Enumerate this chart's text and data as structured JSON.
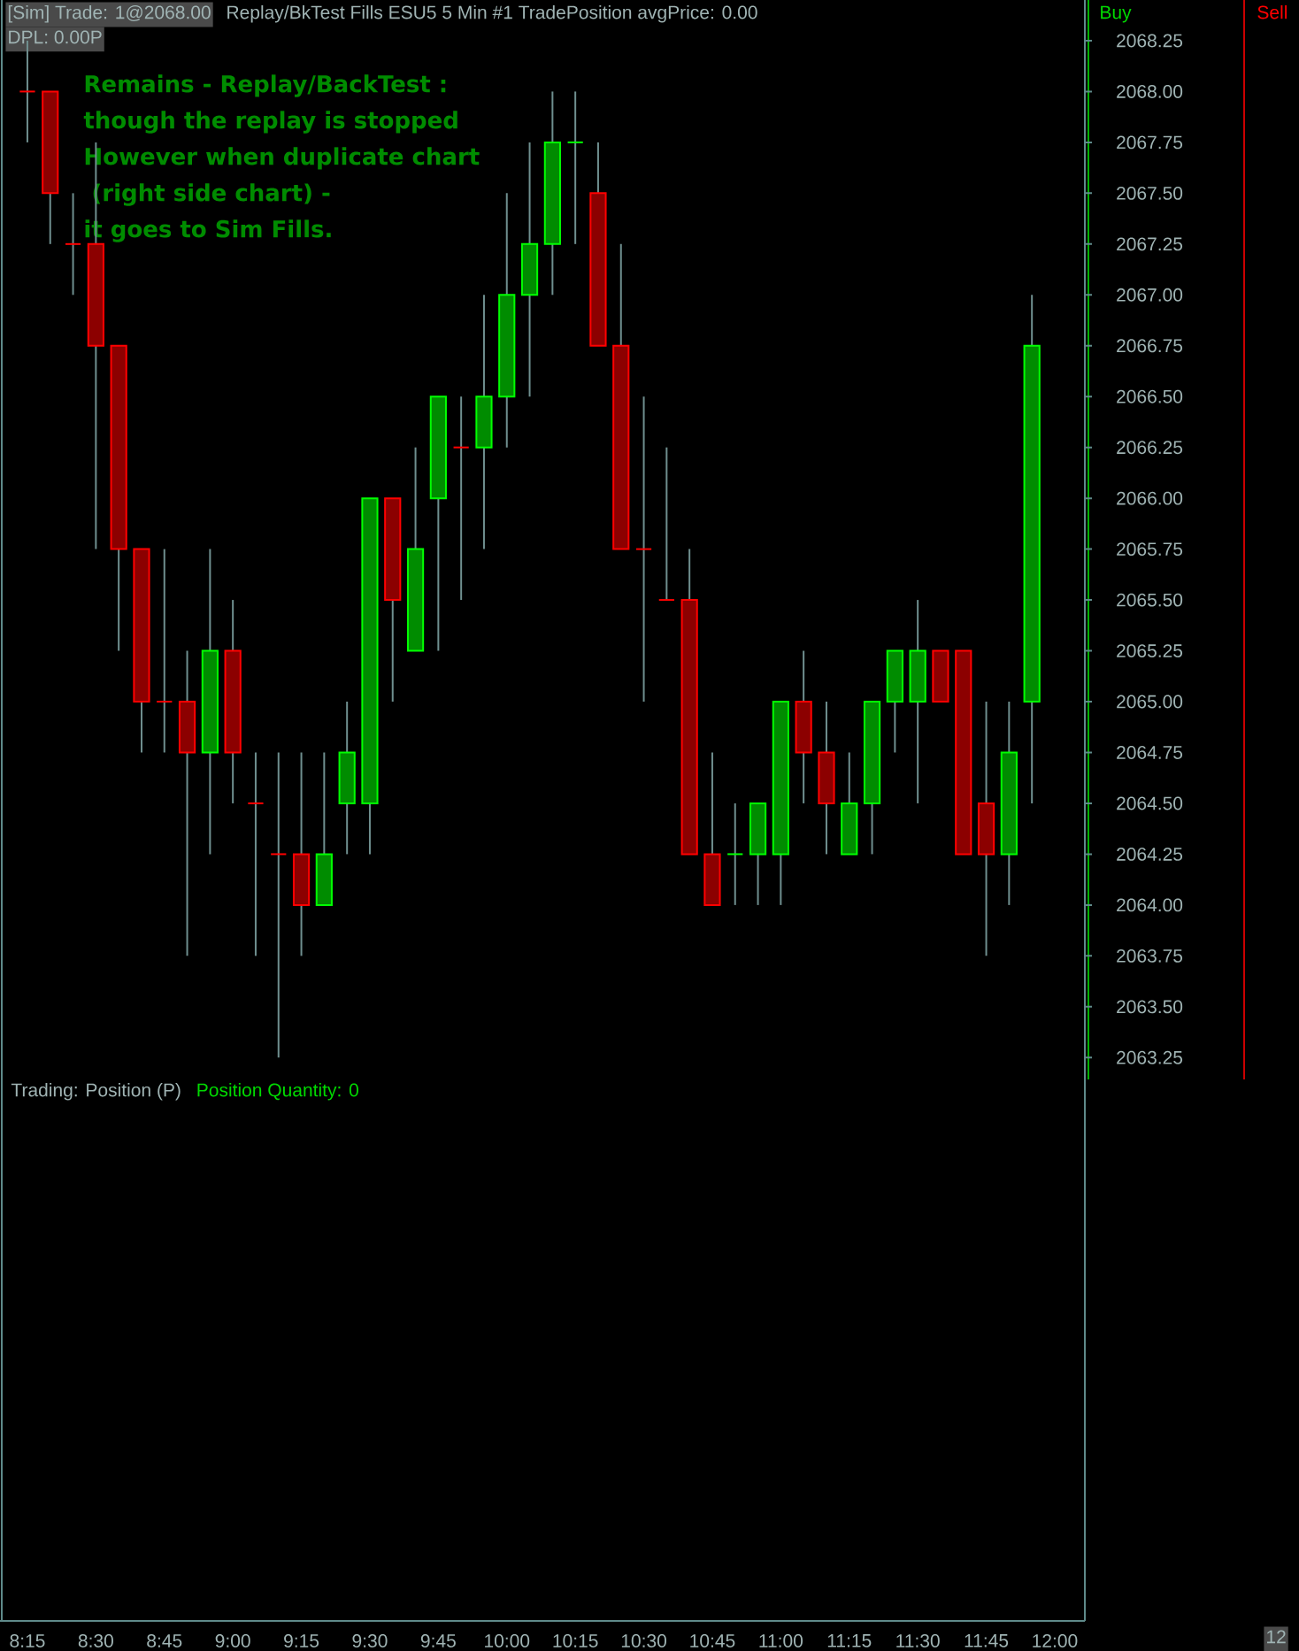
{
  "chart_data": {
    "type": "candlestick",
    "x": [
      8.25,
      8.3333,
      8.4167,
      8.5,
      8.5833,
      8.6667,
      8.75,
      8.8333,
      8.9167,
      9.0,
      9.0833,
      9.1667,
      9.25,
      9.3333,
      9.4167,
      9.5,
      9.5833,
      9.6667,
      9.75,
      9.8333,
      9.9167,
      10.0,
      10.0833,
      10.1667,
      10.25,
      10.3333,
      10.4167,
      10.5,
      10.5833,
      10.6667,
      10.75,
      10.8333,
      10.9167,
      11.0,
      11.0833,
      11.1667,
      11.25,
      11.3333,
      11.4167,
      11.5,
      11.5833,
      11.6667,
      11.75,
      11.8333,
      11.9167
    ],
    "ohlc": [
      [
        2068.0,
        2068.25,
        2067.75,
        2068.0
      ],
      [
        2068.0,
        2068.0,
        2067.25,
        2067.5
      ],
      [
        2067.25,
        2067.5,
        2067.0,
        2067.25
      ],
      [
        2067.25,
        2067.75,
        2065.75,
        2066.75
      ],
      [
        2066.75,
        2066.75,
        2065.25,
        2065.75
      ],
      [
        2065.75,
        2065.75,
        2064.75,
        2065.0
      ],
      [
        2065.0,
        2065.75,
        2064.75,
        2065.0
      ],
      [
        2065.0,
        2065.25,
        2063.75,
        2064.75
      ],
      [
        2064.75,
        2065.75,
        2064.25,
        2065.25
      ],
      [
        2065.25,
        2065.5,
        2064.5,
        2064.75
      ],
      [
        2064.5,
        2064.75,
        2063.75,
        2064.5
      ],
      [
        2064.25,
        2064.75,
        2063.25,
        2064.25
      ],
      [
        2064.25,
        2064.75,
        2063.75,
        2064.0
      ],
      [
        2064.0,
        2064.75,
        2064.0,
        2064.25
      ],
      [
        2064.5,
        2065.0,
        2064.25,
        2064.75
      ],
      [
        2064.5,
        2066.0,
        2064.25,
        2066.0
      ],
      [
        2066.0,
        2066.0,
        2065.0,
        2065.5
      ],
      [
        2065.25,
        2066.25,
        2065.25,
        2065.75
      ],
      [
        2066.0,
        2066.5,
        2065.25,
        2066.5
      ],
      [
        2066.25,
        2066.5,
        2065.5,
        2066.25
      ],
      [
        2066.25,
        2067.0,
        2065.75,
        2066.5
      ],
      [
        2066.5,
        2067.5,
        2066.25,
        2067.0
      ],
      [
        2067.0,
        2067.75,
        2066.5,
        2067.25
      ],
      [
        2067.25,
        2068.0,
        2067.0,
        2067.75
      ],
      [
        2067.75,
        2068.0,
        2067.25,
        2067.75
      ],
      [
        2067.5,
        2067.75,
        2066.75,
        2066.75
      ],
      [
        2066.75,
        2067.25,
        2065.75,
        2065.75
      ],
      [
        2065.75,
        2066.5,
        2065.0,
        2065.75
      ],
      [
        2065.5,
        2066.25,
        2065.5,
        2065.5
      ],
      [
        2065.5,
        2065.75,
        2064.25,
        2064.25
      ],
      [
        2064.25,
        2064.75,
        2064.0,
        2064.0
      ],
      [
        2064.25,
        2064.5,
        2064.0,
        2064.25
      ],
      [
        2064.25,
        2064.5,
        2064.0,
        2064.5
      ],
      [
        2064.25,
        2065.0,
        2064.0,
        2065.0
      ],
      [
        2065.0,
        2065.25,
        2064.5,
        2064.75
      ],
      [
        2064.75,
        2065.0,
        2064.25,
        2064.5
      ],
      [
        2064.25,
        2064.75,
        2064.25,
        2064.5
      ],
      [
        2064.5,
        2065.0,
        2064.25,
        2065.0
      ],
      [
        2065.0,
        2065.25,
        2064.75,
        2065.25
      ],
      [
        2065.0,
        2065.5,
        2064.5,
        2065.25
      ],
      [
        2065.25,
        2065.25,
        2065.0,
        2065.0
      ],
      [
        2065.25,
        2065.25,
        2064.25,
        2064.25
      ],
      [
        2064.5,
        2065.0,
        2063.75,
        2064.25
      ],
      [
        2064.25,
        2065.0,
        2064.0,
        2064.75
      ],
      [
        2065.0,
        2067.0,
        2064.5,
        2066.75
      ]
    ],
    "colors": [
      "#ff0000",
      "#ff0000",
      "#ff0000",
      "#ff0000",
      "#ff0000",
      "#ff0000",
      "#ff0000",
      "#ff0000",
      "#00ff00",
      "#ff0000",
      "#ff0000",
      "#ff0000",
      "#ff0000",
      "#00ff00",
      "#00ff00",
      "#00ff00",
      "#ff0000",
      "#00ff00",
      "#00ff00",
      "#ff0000",
      "#00ff00",
      "#00ff00",
      "#00ff00",
      "#00ff00",
      "#00ff00",
      "#ff0000",
      "#ff0000",
      "#ff0000",
      "#ff0000",
      "#ff0000",
      "#ff0000",
      "#00ff00",
      "#00ff00",
      "#00ff00",
      "#ff0000",
      "#ff0000",
      "#00ff00",
      "#00ff00",
      "#00ff00",
      "#00ff00",
      "#ff0000",
      "#ff0000",
      "#ff0000",
      "#00ff00",
      "#00ff00"
    ],
    "xlim": [
      8.15,
      12.11
    ],
    "ylim": [
      2060.48,
      2068.45
    ],
    "xticks": [
      {
        "value": 8.25,
        "label": "8:15"
      },
      {
        "value": 8.5,
        "label": "8:30"
      },
      {
        "value": 8.75,
        "label": "8:45"
      },
      {
        "value": 9.0,
        "label": "9:00"
      },
      {
        "value": 9.25,
        "label": "9:15"
      },
      {
        "value": 9.5,
        "label": "9:30"
      },
      {
        "value": 9.75,
        "label": "9:45"
      },
      {
        "value": 10.0,
        "label": "10:00"
      },
      {
        "value": 10.25,
        "label": "10:15"
      },
      {
        "value": 10.5,
        "label": "10:30"
      },
      {
        "value": 10.75,
        "label": "10:45"
      },
      {
        "value": 11.0,
        "label": "11:00"
      },
      {
        "value": 11.25,
        "label": "11:15"
      },
      {
        "value": 11.5,
        "label": "11:30"
      },
      {
        "value": 11.75,
        "label": "11:45"
      },
      {
        "value": 12.0,
        "label": "12:00"
      }
    ],
    "yticks": [
      {
        "value": 2063.25,
        "label": "2063.25"
      },
      {
        "value": 2063.5,
        "label": "2063.50"
      },
      {
        "value": 2063.75,
        "label": "2063.75"
      },
      {
        "value": 2064.0,
        "label": "2064.00"
      },
      {
        "value": 2064.25,
        "label": "2064.25"
      },
      {
        "value": 2064.5,
        "label": "2064.50"
      },
      {
        "value": 2064.75,
        "label": "2064.75"
      },
      {
        "value": 2065.0,
        "label": "2065.00"
      },
      {
        "value": 2065.25,
        "label": "2065.25"
      },
      {
        "value": 2065.5,
        "label": "2065.50"
      },
      {
        "value": 2065.75,
        "label": "2065.75"
      },
      {
        "value": 2066.0,
        "label": "2066.00"
      },
      {
        "value": 2066.25,
        "label": "2066.25"
      },
      {
        "value": 2066.5,
        "label": "2066.50"
      },
      {
        "value": 2066.75,
        "label": "2066.75"
      },
      {
        "value": 2067.0,
        "label": "2067.00"
      },
      {
        "value": 2067.25,
        "label": "2067.25"
      },
      {
        "value": 2067.5,
        "label": "2067.50"
      },
      {
        "value": 2067.75,
        "label": "2067.75"
      },
      {
        "value": 2068.0,
        "label": "2068.00"
      },
      {
        "value": 2068.25,
        "label": "2068.25"
      }
    ],
    "annotations": [
      "[Sim]  Trade: 1@2068.00",
      "DPL: 0.00P",
      "Replay/BkTest Fills  ESU5  5 Min  #1  TradePosition  avgPrice: 0.00",
      "Remains - Replay/BackTest :",
      "though the replay is stopped",
      "However when duplicate chart",
      " (right side chart) -",
      "it goes to Sim Fills.",
      "Trading: Position (P)",
      "Position Quantity: 0",
      "Buy",
      "Sell",
      "12"
    ]
  }
}
